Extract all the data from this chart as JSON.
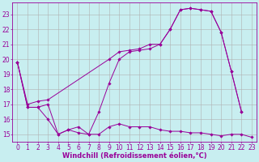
{
  "background_color": "#c8eef0",
  "line_color": "#990099",
  "grid_color": "#b0b0b0",
  "xlabel": "Windchill (Refroidissement éolien,°C)",
  "xlabel_fontsize": 6.0,
  "tick_fontsize": 5.5,
  "xlim": [
    -0.5,
    23.5
  ],
  "ylim": [
    14.5,
    23.8
  ],
  "yticks": [
    15,
    16,
    17,
    18,
    19,
    20,
    21,
    22,
    23
  ],
  "xticks": [
    0,
    1,
    2,
    3,
    4,
    5,
    6,
    7,
    8,
    9,
    10,
    11,
    12,
    13,
    14,
    15,
    16,
    17,
    18,
    19,
    20,
    21,
    22,
    23
  ],
  "series": [
    {
      "x": [
        0,
        1,
        2,
        3,
        4,
        5,
        6,
        7,
        8,
        9,
        10,
        11,
        12,
        13,
        14,
        15,
        16,
        17,
        18,
        19,
        20,
        21,
        22,
        23
      ],
      "y": [
        19.8,
        16.8,
        16.8,
        16.0,
        15.0,
        15.3,
        15.1,
        15.0,
        15.0,
        15.5,
        15.7,
        15.5,
        15.5,
        15.5,
        15.3,
        15.2,
        15.2,
        15.1,
        15.1,
        15.0,
        14.9,
        15.0,
        15.0,
        14.8
      ]
    },
    {
      "x": [
        0,
        1,
        2,
        3,
        4,
        5,
        6,
        7,
        8,
        9,
        10,
        11,
        12,
        13,
        14,
        15,
        16,
        17,
        18,
        19,
        20,
        21,
        22
      ],
      "y": [
        19.8,
        16.8,
        16.8,
        17.0,
        15.0,
        15.3,
        15.5,
        15.0,
        16.5,
        18.4,
        20.0,
        20.5,
        20.6,
        20.7,
        21.0,
        22.0,
        23.3,
        23.4,
        23.3,
        23.2,
        21.8,
        19.2,
        16.5
      ]
    },
    {
      "x": [
        0,
        1,
        2,
        3,
        9,
        10,
        11,
        12,
        13,
        14,
        15,
        16,
        17,
        18,
        19,
        20,
        21,
        22
      ],
      "y": [
        19.8,
        17.0,
        17.2,
        17.3,
        20.0,
        20.5,
        20.6,
        20.7,
        21.0,
        21.0,
        22.0,
        23.3,
        23.4,
        23.3,
        23.2,
        21.8,
        19.2,
        16.5
      ]
    }
  ]
}
